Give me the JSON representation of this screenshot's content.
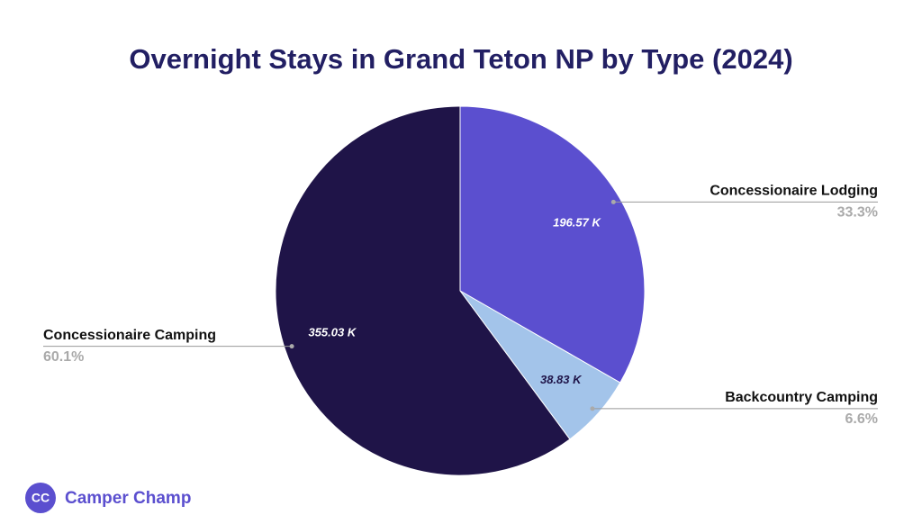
{
  "chart_data": {
    "type": "pie",
    "title": "Overnight Stays in Grand Teton NP by Type (2024)",
    "categories": [
      "Concessionaire Lodging",
      "Backcountry Camping",
      "Concessionaire Camping"
    ],
    "values": [
      196.57,
      38.83,
      355.03
    ],
    "value_labels": [
      "196.57 K",
      "38.83 K",
      "355.03 K"
    ],
    "percent_labels": [
      "33.3%",
      "6.6%",
      "60.1%"
    ],
    "colors": [
      "#5b4fcf",
      "#a3c4ea",
      "#1f1448"
    ]
  },
  "brand": {
    "initials": "CC",
    "name": "Camper Champ"
  }
}
